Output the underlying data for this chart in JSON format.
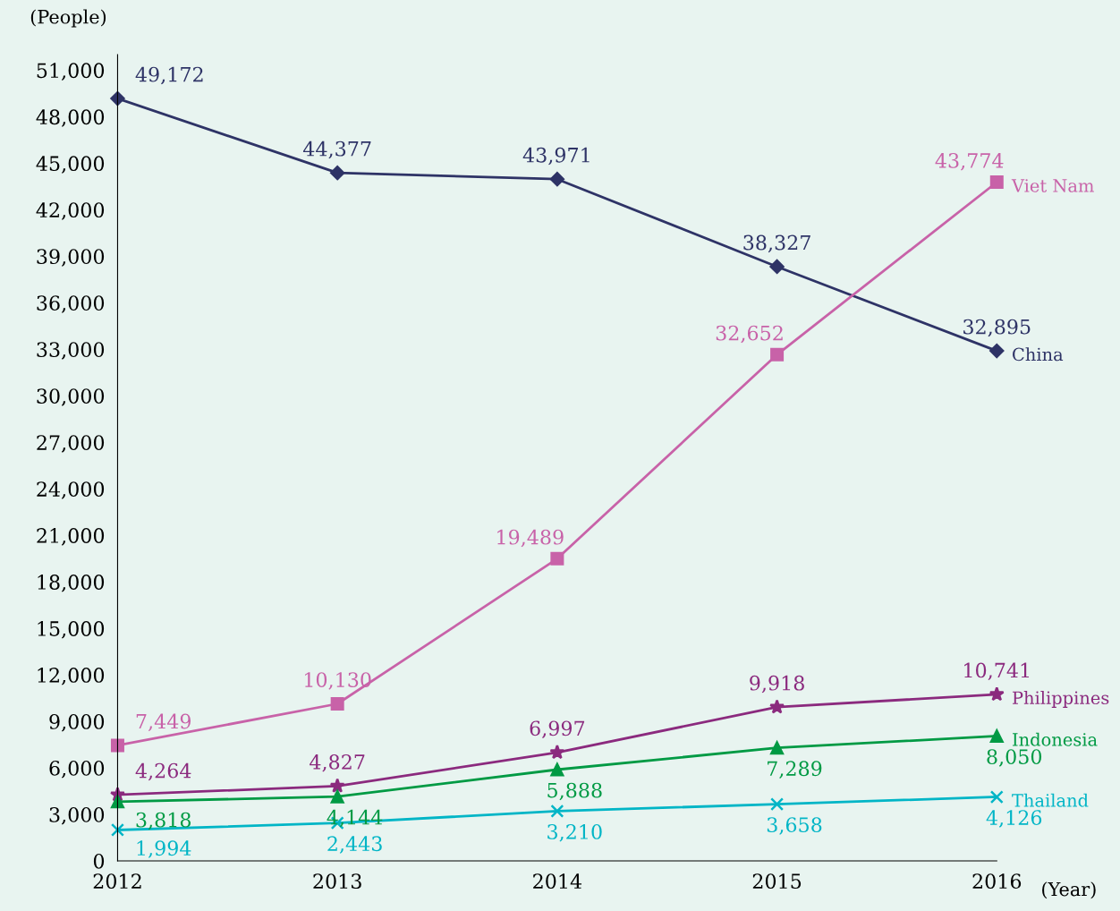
{
  "chart_data": {
    "type": "line",
    "ylabel": "(People)",
    "xlabel": "(Year)",
    "x": [
      2012,
      2013,
      2014,
      2015,
      2016
    ],
    "xlim": [
      2012,
      2016
    ],
    "xticks": [
      2012,
      2013,
      2014,
      2015,
      2016
    ],
    "ylim": [
      0,
      52000
    ],
    "yticks": [
      0,
      {
        "value": 3000,
        "label": "3,000"
      },
      {
        "value": 6000,
        "label": "6,000"
      },
      {
        "value": 9000,
        "label": "9,000"
      },
      {
        "value": 12000,
        "label": "12,000"
      },
      {
        "value": 15000,
        "label": "15,000"
      },
      {
        "value": 18000,
        "label": "18,000"
      },
      {
        "value": 21000,
        "label": "21,000"
      },
      {
        "value": 24000,
        "label": "24,000"
      },
      {
        "value": 27000,
        "label": "27,000"
      },
      {
        "value": 30000,
        "label": "30,000"
      },
      {
        "value": 33000,
        "label": "33,000"
      },
      {
        "value": 36000,
        "label": "36,000"
      },
      {
        "value": 39000,
        "label": "39,000"
      },
      {
        "value": 42000,
        "label": "42,000"
      },
      {
        "value": 45000,
        "label": "45,000"
      },
      {
        "value": 48000,
        "label": "48,000"
      },
      {
        "value": 51000,
        "label": "51,000"
      }
    ],
    "grid": false,
    "legend": false,
    "line_style": "solid",
    "series": [
      {
        "name": "China",
        "color": "#2e3366",
        "marker": "diamond",
        "values": [
          49172,
          44377,
          43971,
          38327,
          32895
        ],
        "value_labels": [
          "49,172",
          "44,377",
          "43,971",
          "38,327",
          "32,895"
        ]
      },
      {
        "name": "Viet Nam",
        "color": "#c862a8",
        "marker": "square",
        "values": [
          7449,
          10130,
          19489,
          32652,
          43774
        ],
        "value_labels": [
          "7,449",
          "10,130",
          "19,489",
          "32,652",
          "43,774"
        ]
      },
      {
        "name": "Philippines",
        "color": "#8b2a7e",
        "marker": "star",
        "values": [
          4264,
          4827,
          6997,
          9918,
          10741
        ],
        "value_labels": [
          "4,264",
          "4,827",
          "6,997",
          "9,918",
          "10,741"
        ]
      },
      {
        "name": "Indonesia",
        "color": "#009a44",
        "marker": "triangle",
        "values": [
          3818,
          4144,
          5888,
          7289,
          8050
        ],
        "value_labels": [
          "3,818",
          "4,144",
          "5,888",
          "7,289",
          "8,050"
        ]
      },
      {
        "name": "Thailand",
        "color": "#00b5c6",
        "marker": "cross",
        "values": [
          1994,
          2443,
          3210,
          3658,
          4126
        ],
        "value_labels": [
          "1,994",
          "2,443",
          "3,210",
          "3,658",
          "4,126"
        ]
      }
    ]
  }
}
